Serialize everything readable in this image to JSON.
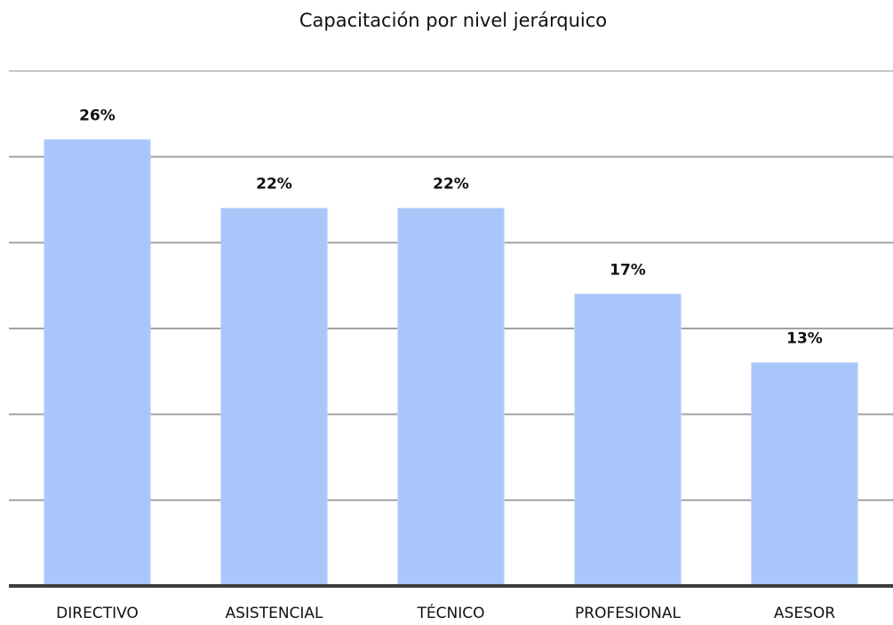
{
  "chart_data": {
    "type": "bar",
    "title": "Capacitación por nivel jerárquico",
    "categories": [
      "DIRECTIVO",
      "ASISTENCIAL",
      "TÉCNICO",
      "PROFESIONAL",
      "ASESOR"
    ],
    "values": [
      26,
      22,
      22,
      17,
      13
    ],
    "value_labels": [
      "26%",
      "22%",
      "22%",
      "17%",
      "13%"
    ],
    "color": "#a8c6fa",
    "ylim": [
      0,
      30
    ],
    "yticks": [
      0,
      5,
      10,
      15,
      20,
      25,
      30
    ],
    "grid": true
  }
}
